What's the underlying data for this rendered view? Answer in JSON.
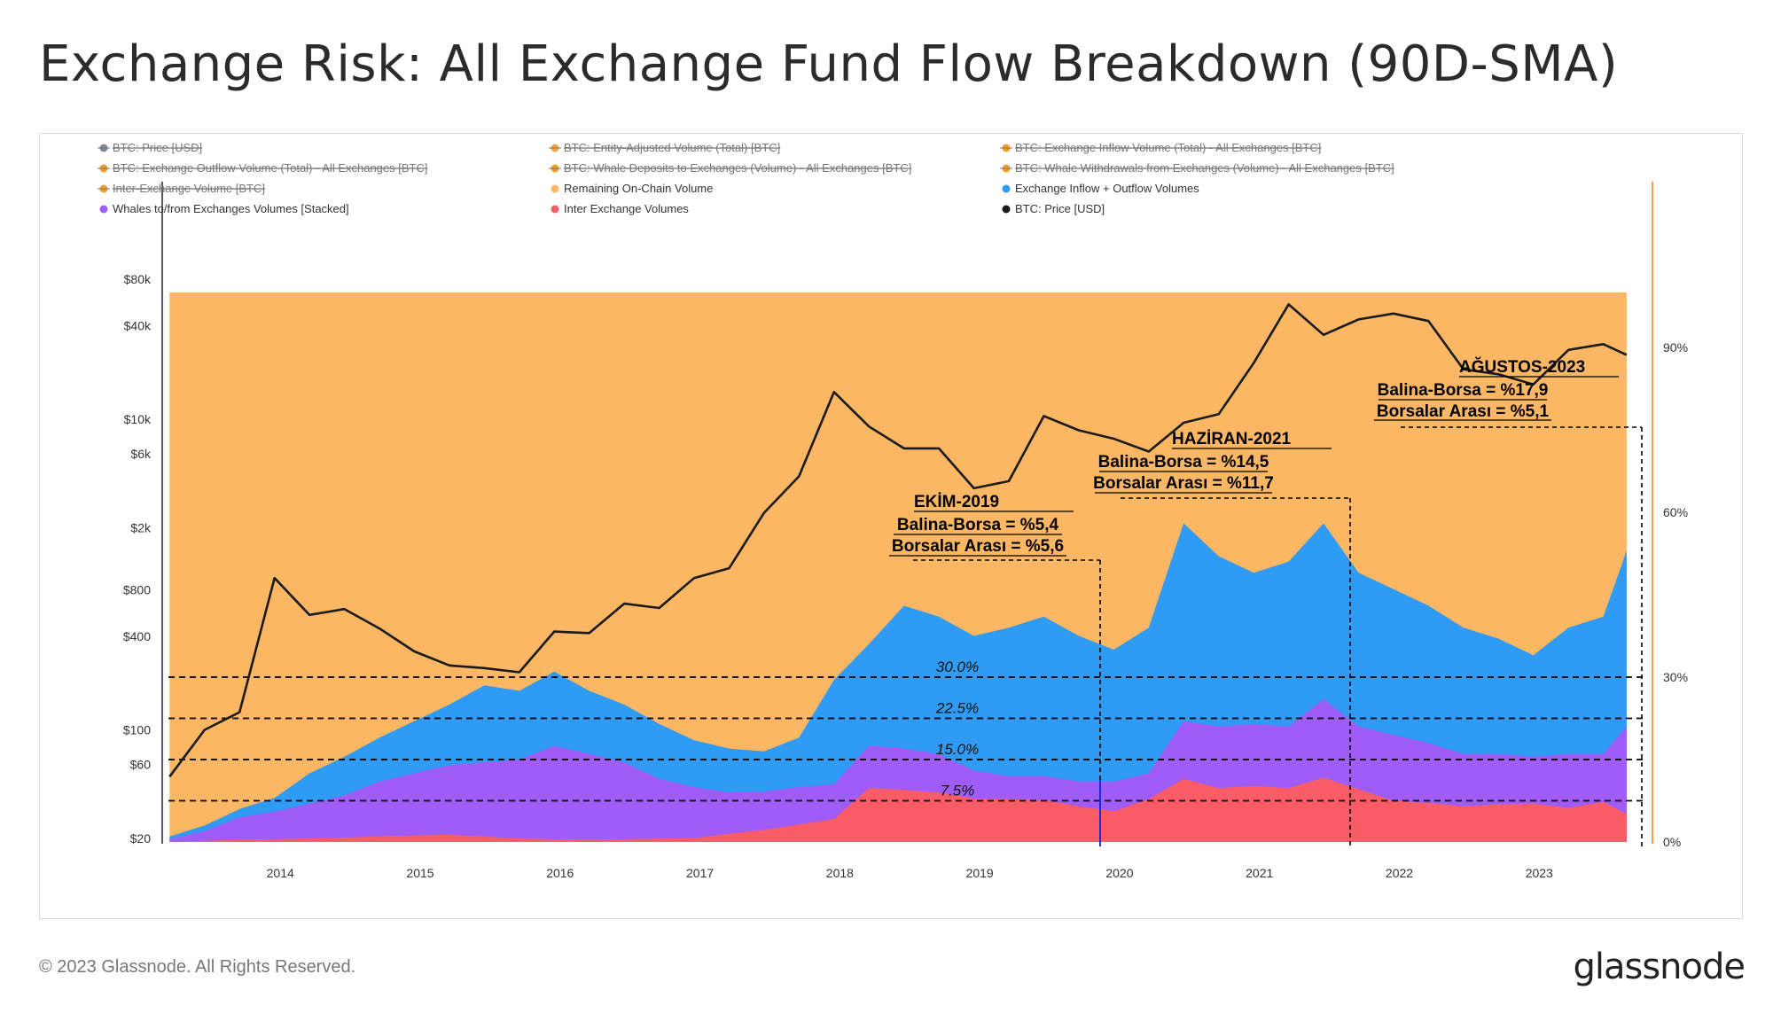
{
  "page": {
    "title": "Exchange Risk: All Exchange Fund Flow Breakdown (90D-SMA)",
    "footer": "© 2023 Glassnode. All Rights Reserved.",
    "logo": "glassnode"
  },
  "colors": {
    "remaining": "#fbb763",
    "exchange": "#2f9bf5",
    "whales": "#9f5cf7",
    "inter": "#fa5c67",
    "price": "#1a1a1a",
    "right_axis": "#f7a24b",
    "left_axis": "#555a66"
  },
  "legend": [
    {
      "label": "BTC: Price [USD]",
      "color": "#7f8a93",
      "disabled": true
    },
    {
      "label": "BTC: Entity-Adjusted Volume (Total) [BTC]",
      "color": "#f7a24b",
      "disabled": true
    },
    {
      "label": "BTC: Exchange Inflow Volume (Total) - All Exchanges [BTC]",
      "color": "#f39c2a",
      "disabled": true
    },
    {
      "label": "BTC: Exchange Outflow Volume (Total) - All Exchanges [BTC]",
      "color": "#f39c2a",
      "disabled": true
    },
    {
      "label": "BTC: Whale Deposits to Exchanges (Volume) - All Exchanges [BTC]",
      "color": "#f39c2a",
      "disabled": true
    },
    {
      "label": "BTC: Whale Withdrawals from Exchanges (Volume) - All Exchanges [BTC]",
      "color": "#f39c2a",
      "disabled": true
    },
    {
      "label": "Inter-Exchange Volume [BTC]",
      "color": "#f39c2a",
      "disabled": true
    },
    {
      "label": "Remaining On-Chain Volume",
      "color": "#fbb763",
      "disabled": false
    },
    {
      "label": "Exchange Inflow + Outflow Volumes",
      "color": "#2f9bf5",
      "disabled": false
    },
    {
      "label": "Whales to/from Exchanges Volumes [Stacked]",
      "color": "#9f5cf7",
      "disabled": false
    },
    {
      "label": "Inter Exchange Volumes",
      "color": "#fa5c67",
      "disabled": false
    },
    {
      "label": "BTC: Price [USD]",
      "color": "#1a1a1a",
      "disabled": false
    }
  ],
  "chart_data": {
    "type": "area",
    "x_ticks": [
      "2014",
      "2015",
      "2016",
      "2017",
      "2018",
      "2019",
      "2020",
      "2021",
      "2022",
      "2023"
    ],
    "y_left": {
      "scale": "log",
      "ticks": [
        "$20",
        "$60",
        "$100",
        "$400",
        "$800",
        "$2k",
        "$6k",
        "$10k",
        "$40k",
        "$80k"
      ]
    },
    "y_right": {
      "ticks": [
        "0%",
        "30%",
        "60%",
        "90%"
      ],
      "range": [
        0,
        100
      ]
    },
    "x": [
      "2013-03",
      "2013-06",
      "2013-09",
      "2013-12",
      "2014-03",
      "2014-06",
      "2014-09",
      "2014-12",
      "2015-03",
      "2015-06",
      "2015-09",
      "2015-12",
      "2016-03",
      "2016-06",
      "2016-09",
      "2016-12",
      "2017-03",
      "2017-06",
      "2017-09",
      "2017-12",
      "2018-03",
      "2018-06",
      "2018-09",
      "2018-12",
      "2019-03",
      "2019-06",
      "2019-09",
      "2019-12",
      "2020-03",
      "2020-06",
      "2020-09",
      "2020-12",
      "2021-03",
      "2021-06",
      "2021-09",
      "2021-12",
      "2022-03",
      "2022-06",
      "2022-09",
      "2022-12",
      "2023-03",
      "2023-06",
      "2023-08"
    ],
    "series": [
      {
        "name": "Inter Exchange Volumes",
        "values": [
          0.0,
          0.2,
          0.4,
          0.5,
          0.6,
          0.8,
          1.0,
          1.2,
          1.3,
          1.0,
          0.6,
          0.5,
          0.4,
          0.5,
          0.6,
          0.7,
          1.5,
          2.2,
          3.2,
          4.2,
          9.8,
          9.5,
          9.0,
          7.9,
          7.8,
          7.6,
          6.5,
          5.6,
          7.8,
          11.5,
          9.8,
          10.2,
          9.8,
          11.7,
          9.6,
          7.5,
          7.1,
          6.5,
          6.8,
          7.0,
          6.2,
          7.3,
          5.1
        ]
      },
      {
        "name": "Whales to/from Exchanges Volumes [Stacked]",
        "values": [
          0.5,
          2.0,
          4.5,
          5.5,
          7.0,
          8.5,
          11.0,
          12.5,
          14.0,
          14.5,
          15.0,
          17.5,
          16.0,
          14.5,
          11.5,
          10.0,
          9.0,
          9.2,
          10.0,
          10.5,
          17.5,
          17.0,
          16.0,
          13.0,
          12.0,
          12.0,
          11.0,
          11.0,
          12.5,
          22.0,
          21.0,
          21.5,
          21.0,
          26.0,
          21.0,
          19.5,
          18.0,
          16.0,
          16.0,
          15.5,
          16.0,
          16.0,
          21.0
        ]
      },
      {
        "name": "Exchange Inflow + Outflow Volumes",
        "values": [
          1.0,
          3.0,
          6.0,
          8.0,
          12.5,
          15.5,
          19.0,
          22.0,
          25.0,
          28.5,
          27.5,
          31.0,
          27.5,
          25.0,
          21.5,
          18.5,
          17.0,
          16.5,
          19.0,
          29.5,
          36.0,
          43.0,
          41.0,
          37.5,
          39.0,
          41.0,
          37.5,
          35.0,
          39.0,
          58.0,
          52.0,
          49.0,
          51.0,
          58.0,
          49.0,
          46.0,
          43.0,
          39.0,
          37.0,
          34.0,
          39.0,
          41.0,
          53.0
        ]
      },
      {
        "name": "Remaining On-Chain Volume",
        "values": [
          100.0,
          100.0,
          100.0,
          100.0,
          100.0,
          100.0,
          100.0,
          100.0,
          100.0,
          100.0,
          100.0,
          100.0,
          100.0,
          100.0,
          100.0,
          100.0,
          100.0,
          100.0,
          100.0,
          100.0,
          100.0,
          100.0,
          100.0,
          100.0,
          100.0,
          100.0,
          100.0,
          100.0,
          100.0,
          100.0,
          100.0,
          100.0,
          100.0,
          100.0,
          100.0,
          100.0,
          100.0,
          100.0,
          100.0,
          100.0,
          100.0,
          100.0,
          100.0
        ]
      },
      {
        "name": "BTC: Price [USD]",
        "values": [
          50,
          100,
          130,
          950,
          550,
          600,
          450,
          320,
          260,
          250,
          235,
          430,
          420,
          650,
          610,
          950,
          1100,
          2500,
          4300,
          15000,
          9000,
          6500,
          6500,
          3600,
          4000,
          10500,
          8500,
          7500,
          6200,
          9500,
          10800,
          23000,
          55000,
          35000,
          44000,
          48000,
          43000,
          21000,
          19500,
          16800,
          28000,
          30500,
          26000
        ]
      }
    ],
    "reference_lines": [
      "7.5%",
      "15.0%",
      "22.5%",
      "30.0%"
    ],
    "annotations": [
      {
        "date": "2019-10",
        "title": "EKİM-2019",
        "line1": "Balina-Borsa = %5,4",
        "line2": "Borsalar Arası = %5,6"
      },
      {
        "date": "2021-06",
        "title": "HAZİRAN-2021",
        "line1": "Balina-Borsa = %14,5",
        "line2": "Borsalar Arası = %11,7"
      },
      {
        "date": "2023-08",
        "title": "AĞUSTOS-2023",
        "line1": "Balina-Borsa = %17,9",
        "line2": "Borsalar Arası = %5,1"
      }
    ]
  }
}
